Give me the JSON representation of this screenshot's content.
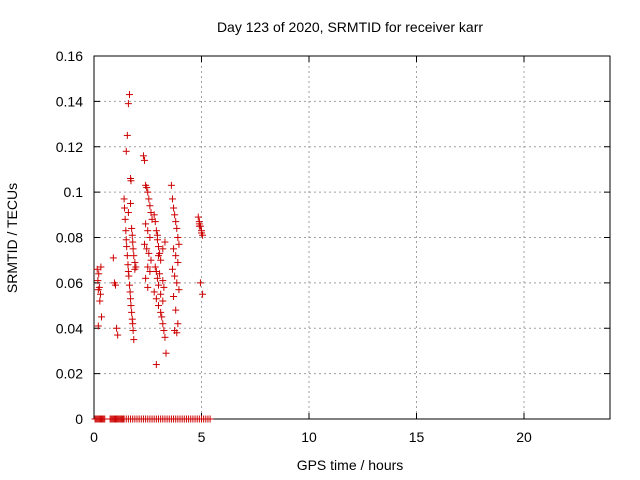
{
  "chart_data": {
    "type": "scatter",
    "title": "Day 123 of 2020, SRMTID for receiver karr",
    "xlabel": "GPS time / hours",
    "ylabel": "SRMTID / TECUs",
    "xlim": [
      0,
      24
    ],
    "ylim": [
      0,
      0.16
    ],
    "x_ticks": [
      0,
      5,
      10,
      15,
      20
    ],
    "x_tick_labels": [
      "0",
      "5",
      "10",
      "15",
      "20"
    ],
    "y_ticks": [
      0,
      0.02,
      0.04,
      0.06,
      0.08,
      0.1,
      0.12,
      0.14,
      0.16
    ],
    "y_tick_labels": [
      "0",
      "0.02",
      "0.04",
      "0.06",
      "0.08",
      "0.1",
      "0.12",
      "0.14",
      "0.16"
    ],
    "grid": true,
    "marker": "+",
    "color": "#cc0000",
    "series": [
      {
        "x": [
          0.15,
          0.18,
          0.2,
          0.22,
          0.25,
          0.27,
          0.3,
          0.32,
          0.35,
          0.2,
          0.9,
          0.95,
          1.0,
          1.05,
          1.1,
          1.4,
          1.42,
          1.45,
          1.48,
          1.5,
          1.52,
          1.55,
          1.58,
          1.6,
          1.62,
          1.65,
          1.68,
          1.7,
          1.72,
          1.75,
          1.78,
          1.8,
          1.82,
          1.85,
          1.9,
          1.5,
          1.55,
          1.6,
          1.65,
          1.7,
          1.72,
          1.75,
          1.78,
          1.8,
          1.82,
          1.85,
          1.9,
          1.95,
          1.6,
          1.7,
          2.3,
          2.35,
          2.4,
          2.45,
          2.5,
          2.55,
          2.6,
          2.65,
          2.7,
          2.4,
          2.5,
          2.6,
          2.35,
          2.45,
          2.55,
          2.65,
          2.5,
          2.6,
          2.4,
          2.5,
          2.8,
          2.85,
          2.9,
          2.95,
          3.0,
          3.05,
          3.1,
          2.85,
          2.9,
          2.95,
          3.0,
          2.8,
          2.9,
          3.0,
          3.1,
          3.15,
          3.2,
          3.25,
          3.3,
          3.35,
          2.9,
          3.0,
          3.2,
          3.3,
          2.95,
          3.05,
          3.2,
          3.25,
          3.1,
          3.2,
          3.6,
          3.65,
          3.7,
          3.75,
          3.8,
          3.85,
          3.9,
          3.95,
          3.7,
          3.8,
          3.9,
          3.65,
          3.75,
          3.85,
          3.95,
          3.7,
          3.8,
          3.9,
          3.75,
          3.85,
          4.85,
          4.9,
          4.95,
          5.0,
          5.05,
          4.9,
          5.0,
          4.95,
          5.05,
          4.9
        ],
        "y": [
          0.066,
          0.061,
          0.057,
          0.064,
          0.058,
          0.052,
          0.055,
          0.067,
          0.045,
          0.041,
          0.071,
          0.06,
          0.059,
          0.04,
          0.037,
          0.097,
          0.093,
          0.088,
          0.083,
          0.079,
          0.076,
          0.072,
          0.068,
          0.065,
          0.063,
          0.059,
          0.056,
          0.053,
          0.05,
          0.047,
          0.044,
          0.042,
          0.039,
          0.035,
          0.066,
          0.118,
          0.125,
          0.139,
          0.143,
          0.106,
          0.105,
          0.084,
          0.081,
          0.078,
          0.075,
          0.072,
          0.069,
          0.067,
          0.091,
          0.095,
          0.116,
          0.114,
          0.103,
          0.102,
          0.1,
          0.097,
          0.094,
          0.091,
          0.088,
          0.086,
          0.083,
          0.08,
          0.077,
          0.075,
          0.073,
          0.07,
          0.067,
          0.065,
          0.062,
          0.058,
          0.09,
          0.087,
          0.083,
          0.079,
          0.076,
          0.073,
          0.07,
          0.067,
          0.065,
          0.062,
          0.059,
          0.056,
          0.053,
          0.05,
          0.047,
          0.045,
          0.042,
          0.039,
          0.036,
          0.029,
          0.024,
          0.072,
          0.075,
          0.078,
          0.081,
          0.064,
          0.061,
          0.058,
          0.055,
          0.052,
          0.103,
          0.097,
          0.093,
          0.09,
          0.087,
          0.084,
          0.08,
          0.077,
          0.075,
          0.072,
          0.069,
          0.066,
          0.063,
          0.06,
          0.057,
          0.054,
          0.048,
          0.042,
          0.039,
          0.038,
          0.089,
          0.087,
          0.085,
          0.083,
          0.081,
          0.085,
          0.082,
          0.06,
          0.055,
          0.086
        ]
      },
      {
        "x": [
          0.05,
          0.1,
          0.15,
          0.2,
          0.25,
          0.3,
          0.35,
          0.4,
          0.45,
          0.5,
          0.75,
          0.8,
          0.85,
          0.9,
          0.95,
          1.0,
          1.05,
          1.1,
          1.15,
          1.2,
          1.25,
          1.3,
          1.35,
          1.4,
          1.5,
          1.6,
          1.7,
          1.8,
          1.9,
          2.0,
          2.1,
          2.2,
          2.3,
          2.4,
          2.5,
          2.6,
          2.7,
          2.8,
          2.9,
          3.0,
          3.1,
          3.2,
          3.3,
          3.4,
          3.5,
          3.6,
          3.7,
          3.8,
          3.9,
          4.0,
          4.1,
          4.2,
          4.3,
          4.4,
          4.5,
          4.6,
          4.7,
          4.8,
          4.9,
          5.0,
          5.1,
          5.2,
          5.3,
          5.4
        ],
        "y": [
          0,
          0,
          0,
          0,
          0,
          0,
          0,
          0,
          0,
          0,
          0,
          0,
          0,
          0,
          0,
          0,
          0,
          0,
          0,
          0,
          0,
          0,
          0,
          0,
          0,
          0,
          0,
          0,
          0,
          0,
          0,
          0,
          0,
          0,
          0,
          0,
          0,
          0,
          0,
          0,
          0,
          0,
          0,
          0,
          0,
          0,
          0,
          0,
          0,
          0,
          0,
          0,
          0,
          0,
          0,
          0,
          0,
          0,
          0,
          0,
          0,
          0,
          0,
          0
        ]
      }
    ]
  }
}
